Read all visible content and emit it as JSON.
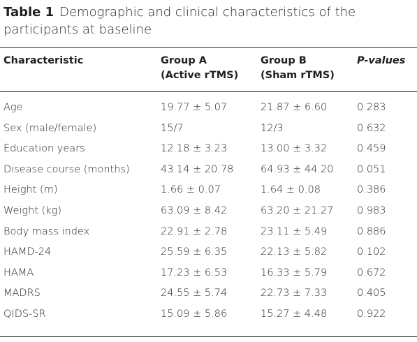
{
  "caption": {
    "label": "Table 1",
    "text": "Demographic and clinical characteristics of the participants at baseline"
  },
  "table": {
    "headers": [
      [
        "Characteristic"
      ],
      [
        "Group A",
        "(Active rTMS)"
      ],
      [
        "Group B",
        "(Sham rTMS)"
      ],
      [
        "P-values"
      ]
    ],
    "rows": [
      [
        "Age",
        "19.77 ± 5.07",
        "21.87 ± 6.60",
        "0.283"
      ],
      [
        "Sex (male/female)",
        "15/7",
        "12/3",
        "0.632"
      ],
      [
        "Education years",
        "12.18 ± 3.23",
        "13.00 ± 3.32",
        "0.459"
      ],
      [
        "Disease course (months)",
        "43.14 ± 20.78",
        "64.93 ± 44.20",
        "0.051"
      ],
      [
        "Height (m)",
        "1.66 ± 0.07",
        "1.64 ± 0.08",
        "0.386"
      ],
      [
        "Weight (kg)",
        "63.09 ± 8.42",
        "63.20 ± 21.27",
        "0.983"
      ],
      [
        "Body mass index",
        "22.91 ± 2.78",
        "23.11 ± 5.49",
        "0.886"
      ],
      [
        "HAMD-24",
        "25.59 ± 6.35",
        "22.13 ± 5.82",
        "0.102"
      ],
      [
        "HAMA",
        "17.23 ± 6.53",
        "16.33 ± 5.79",
        "0.672"
      ],
      [
        "MADRS",
        "24.55 ± 5.74",
        "22.73 ± 7.33",
        "0.405"
      ],
      [
        "QIDS-SR",
        "15.09 ± 5.86",
        "15.27 ± 4.48",
        "0.922"
      ]
    ]
  }
}
